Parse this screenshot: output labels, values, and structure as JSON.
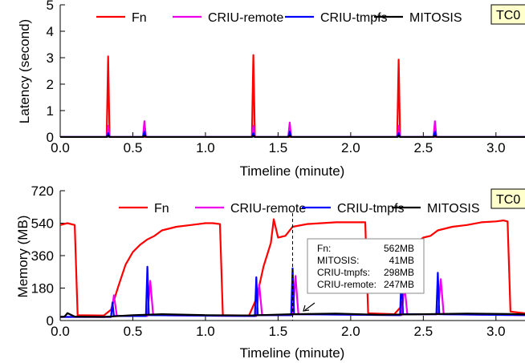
{
  "colors": {
    "Fn": "#ff0000",
    "CRIU-remote": "#ee00ee",
    "CRIU-tmpfs": "#0000ff",
    "MITOSIS": "#000000",
    "badge_fill": "#ffffcc"
  },
  "chart_data": [
    {
      "type": "line",
      "badge": "TC0",
      "xlabel": "Timeline (minute)",
      "ylabel": "Latency (second)",
      "xlim": [
        0,
        3.2
      ],
      "ylim": [
        0,
        5
      ],
      "xticks": [
        "0.0",
        "0.5",
        "1.0",
        "1.5",
        "2.0",
        "2.5",
        "3.0"
      ],
      "yticks": [
        "0",
        "1",
        "2",
        "3",
        "4",
        "5"
      ],
      "grid": false,
      "legend": "top",
      "series": [
        {
          "name": "Fn",
          "x": [
            0,
            0.32,
            0.33,
            0.34,
            1.32,
            1.33,
            1.34,
            2.32,
            2.33,
            2.34,
            3.2
          ],
          "y": [
            0,
            0,
            3.05,
            0,
            0,
            3.1,
            0,
            0,
            2.93,
            0,
            0
          ]
        },
        {
          "name": "CRIU-remote",
          "x": [
            0,
            0.32,
            0.33,
            0.34,
            0.57,
            0.58,
            0.59,
            1.32,
            1.33,
            1.34,
            1.57,
            1.58,
            1.59,
            2.32,
            2.33,
            2.34,
            2.57,
            2.58,
            2.59,
            3.2
          ],
          "y": [
            0,
            0,
            0.42,
            0,
            0,
            0.6,
            0,
            0,
            0.42,
            0,
            0,
            0.55,
            0,
            0,
            0.42,
            0,
            0,
            0.6,
            0,
            0
          ]
        },
        {
          "name": "CRIU-tmpfs",
          "x": [
            0,
            0.32,
            0.33,
            0.34,
            0.57,
            0.58,
            0.59,
            1.32,
            1.33,
            1.34,
            1.57,
            1.58,
            1.59,
            2.32,
            2.33,
            2.34,
            2.57,
            2.58,
            2.59,
            3.2
          ],
          "y": [
            0,
            0,
            0.15,
            0,
            0,
            0.2,
            0,
            0,
            0.15,
            0,
            0,
            0.2,
            0,
            0,
            0.15,
            0,
            0,
            0.2,
            0,
            0
          ]
        },
        {
          "name": "MITOSIS",
          "x": [
            0,
            0.32,
            0.33,
            0.34,
            0.57,
            0.58,
            0.59,
            1.32,
            1.33,
            1.34,
            1.57,
            1.58,
            1.59,
            2.32,
            2.33,
            2.34,
            2.57,
            2.58,
            2.59,
            3.2
          ],
          "y": [
            0,
            0,
            0.05,
            0,
            0,
            0.05,
            0,
            0,
            0.05,
            0,
            0,
            0.05,
            0,
            0,
            0.05,
            0,
            0,
            0.05,
            0,
            0
          ]
        }
      ]
    },
    {
      "type": "line",
      "badge": "TC0",
      "xlabel": "Timeline (minute)",
      "ylabel": "Memory (MB)",
      "xlim": [
        0,
        3.2
      ],
      "ylim": [
        0,
        720
      ],
      "xticks": [
        "0.0",
        "0.5",
        "1.0",
        "1.5",
        "2.0",
        "2.5",
        "3.0"
      ],
      "yticks": [
        "0",
        "180",
        "360",
        "540",
        "720"
      ],
      "grid": false,
      "legend": "top",
      "annotation": {
        "at": [
          1.6,
          45
        ],
        "lines": [
          {
            "label": "Fn:",
            "value": "562MB"
          },
          {
            "label": "MITOSIS:",
            "value": "41MB"
          },
          {
            "label": "CRIU-tmpfs:",
            "value": "298MB"
          },
          {
            "label": "CRIU-remote:",
            "value": "247MB"
          }
        ]
      },
      "series": [
        {
          "name": "Fn",
          "x": [
            0,
            0.05,
            0.1,
            0.12,
            0.3,
            0.35,
            0.4,
            0.45,
            0.5,
            0.55,
            0.6,
            0.65,
            0.7,
            0.8,
            0.9,
            1.0,
            1.05,
            1.1,
            1.12,
            1.3,
            1.35,
            1.4,
            1.45,
            1.47,
            1.5,
            1.55,
            1.6,
            1.7,
            1.8,
            1.9,
            2.0,
            2.05,
            2.1,
            2.12,
            2.3,
            2.35,
            2.4,
            2.45,
            2.5,
            2.55,
            2.6,
            2.7,
            2.8,
            2.9,
            3.0,
            3.05,
            3.08,
            3.1,
            3.2
          ],
          "y": [
            530,
            540,
            530,
            30,
            28,
            60,
            190,
            310,
            380,
            420,
            450,
            470,
            500,
            520,
            530,
            540,
            540,
            535,
            30,
            28,
            120,
            300,
            430,
            562,
            460,
            470,
            520,
            535,
            540,
            545,
            545,
            545,
            545,
            40,
            35,
            80,
            300,
            430,
            460,
            470,
            500,
            520,
            530,
            545,
            550,
            555,
            550,
            50,
            40
          ]
        },
        {
          "name": "CRIU-remote",
          "x": [
            0,
            0.35,
            0.37,
            0.39,
            0.6,
            0.62,
            0.64,
            1.35,
            1.37,
            1.39,
            1.6,
            1.62,
            1.64,
            2.35,
            2.37,
            2.39,
            2.6,
            2.62,
            2.64,
            3.2
          ],
          "y": [
            20,
            20,
            140,
            25,
            25,
            220,
            30,
            25,
            200,
            30,
            30,
            247,
            35,
            30,
            200,
            35,
            35,
            230,
            35,
            30
          ]
        },
        {
          "name": "CRIU-tmpfs",
          "x": [
            0,
            0.35,
            0.36,
            0.37,
            0.59,
            0.6,
            0.61,
            1.34,
            1.35,
            1.36,
            1.59,
            1.6,
            1.61,
            2.34,
            2.35,
            2.36,
            2.59,
            2.6,
            2.61,
            3.2
          ],
          "y": [
            20,
            20,
            100,
            25,
            25,
            298,
            30,
            25,
            240,
            30,
            30,
            290,
            35,
            30,
            270,
            35,
            35,
            265,
            35,
            30
          ]
        },
        {
          "name": "MITOSIS",
          "x": [
            0,
            0.03,
            0.05,
            0.1,
            0.3,
            0.5,
            0.7,
            1.0,
            1.3,
            1.6,
            1.9,
            2.2,
            2.5,
            2.8,
            3.1,
            3.2
          ],
          "y": [
            20,
            22,
            41,
            22,
            20,
            30,
            35,
            30,
            28,
            35,
            38,
            32,
            35,
            38,
            36,
            34
          ]
        }
      ]
    }
  ]
}
